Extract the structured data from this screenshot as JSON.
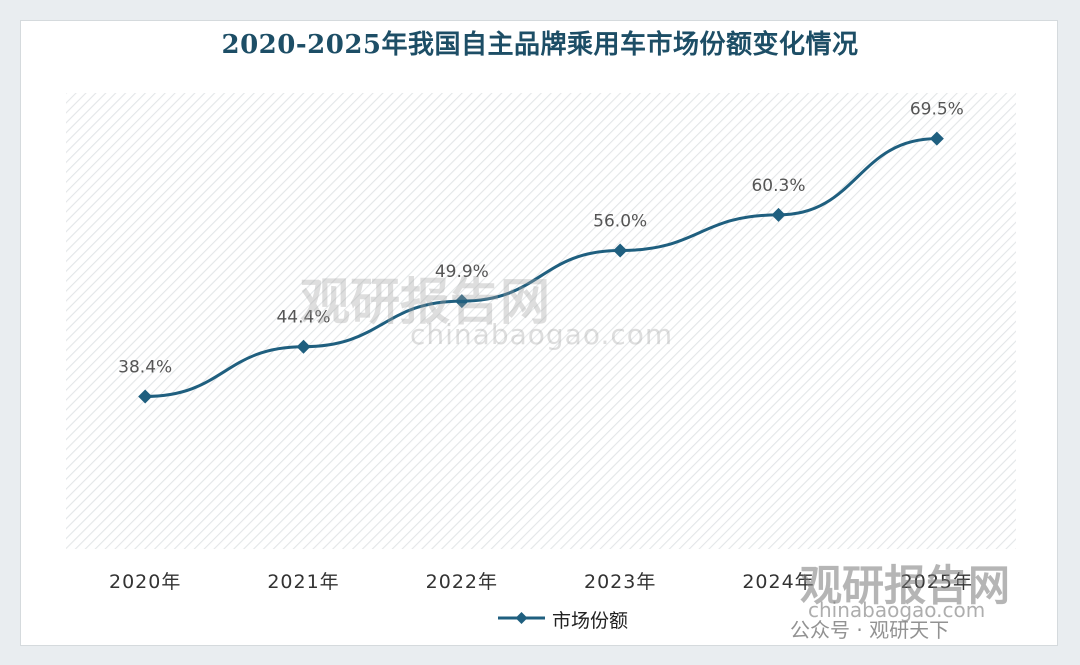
{
  "chart_data": {
    "type": "line",
    "title": "2020-2025年我国自主品牌乘用车市场份额变化情况",
    "categories": [
      "2020年",
      "2021年",
      "2022年",
      "2023年",
      "2024年",
      "2025年"
    ],
    "series": [
      {
        "name": "市场份额",
        "values": [
          38.4,
          44.4,
          49.9,
          56.0,
          60.3,
          69.5
        ],
        "labels": [
          "38.4%",
          "44.4%",
          "49.9%",
          "56.0%",
          "60.3%",
          "69.5%"
        ]
      }
    ],
    "ylim": [
      20,
      75
    ],
    "grid": false,
    "legend_position": "bottom",
    "colors": {
      "line": "#1f5f7f",
      "title": "#1d4e66",
      "plot_hatch": "#e3e6e8"
    }
  },
  "watermark": {
    "text_main": "观研报告网",
    "text_url": "chinabaogao.com",
    "text_wechat": "公众号 · 观研天下"
  }
}
